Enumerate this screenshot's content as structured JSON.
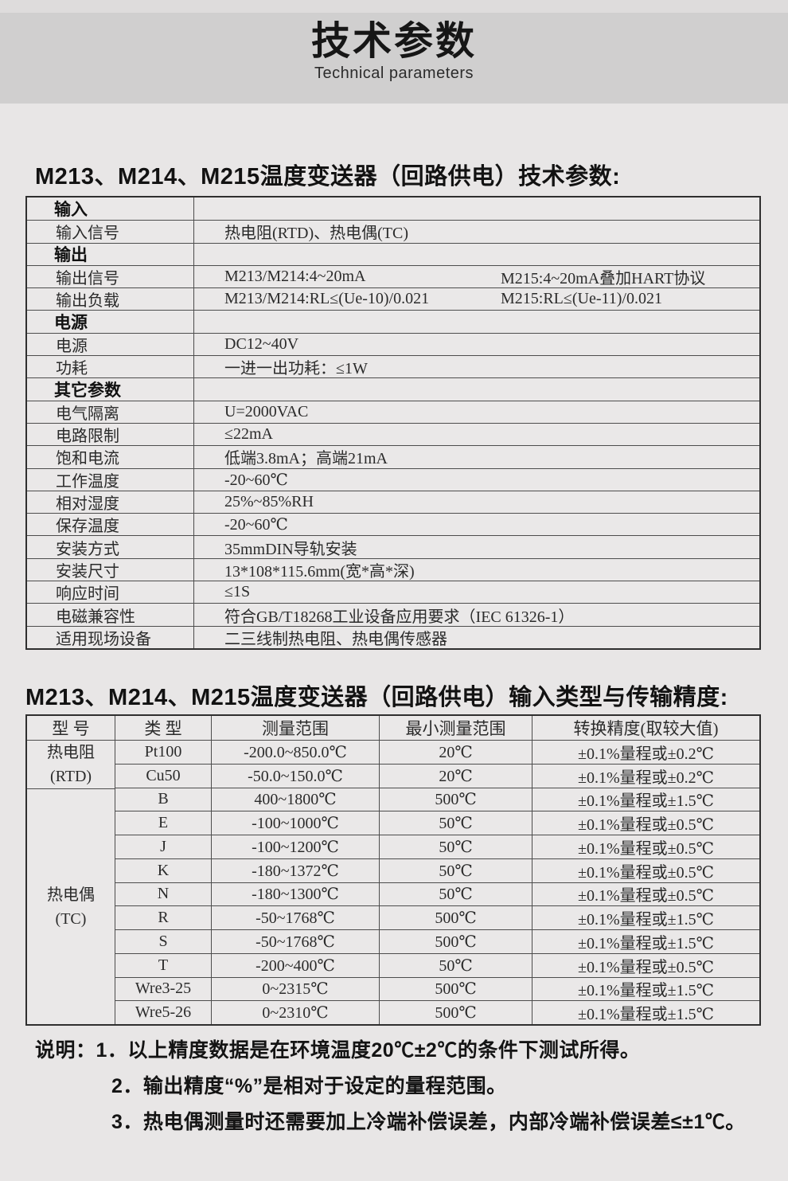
{
  "banner": {
    "title": "技术参数",
    "subtitle": "Technical parameters"
  },
  "section1": {
    "heading": "M213、M214、M215温度变送器（回路供电）技术参数:",
    "rows": [
      {
        "label": "输入"
      },
      {
        "label": "输入信号",
        "value": "热电阻(RTD)、热电偶(TC)"
      },
      {
        "label": "输出"
      },
      {
        "label": "输出信号",
        "value": "M213/M214:4~20mA",
        "value2": "M215:4~20mA叠加HART协议"
      },
      {
        "label": "输出负载",
        "value": "M213/M214:RL≤(Ue-10)/0.021",
        "value2": "M215:RL≤(Ue-11)/0.021"
      },
      {
        "label": "电源"
      },
      {
        "label": "电源",
        "value": "DC12~40V"
      },
      {
        "label": "功耗",
        "value": "一进一出功耗：≤1W"
      },
      {
        "label": "其它参数"
      },
      {
        "label": "电气隔离",
        "value": "U=2000VAC"
      },
      {
        "label": "电路限制",
        "value": "≤22mA"
      },
      {
        "label": "饱和电流",
        "value": "低端3.8mA；高端21mA"
      },
      {
        "label": "工作温度",
        "value": "-20~60℃"
      },
      {
        "label": "相对湿度",
        "value": "25%~85%RH"
      },
      {
        "label": "保存温度",
        "value": "-20~60℃"
      },
      {
        "label": "安装方式",
        "value": "35mmDIN导轨安装"
      },
      {
        "label": "安装尺寸",
        "value": "13*108*115.6mm(宽*高*深)"
      },
      {
        "label": "响应时间",
        "value": "≤1S"
      },
      {
        "label": "电磁兼容性",
        "value": "符合GB/T18268工业设备应用要求（IEC 61326-1）"
      },
      {
        "label": "适用现场设备",
        "value": "二三线制热电阻、热电偶传感器"
      }
    ]
  },
  "section2": {
    "heading": "M213、M214、M215温度变送器（回路供电）输入类型与传输精度:",
    "headers": [
      "型 号",
      "类 型",
      "测量范围",
      "最小测量范围",
      "转换精度(取较大值)"
    ],
    "groups": [
      {
        "name": "热电阻",
        "code": "(RTD)",
        "rows": [
          {
            "type": "Pt100",
            "range": "-200.0~850.0℃",
            "min": "20℃",
            "acc": "±0.1%量程或±0.2℃"
          },
          {
            "type": "Cu50",
            "range": "-50.0~150.0℃",
            "min": "20℃",
            "acc": "±0.1%量程或±0.2℃"
          }
        ]
      },
      {
        "name": "热电偶",
        "code": "(TC)",
        "rows": [
          {
            "type": "B",
            "range": "400~1800℃",
            "min": "500℃",
            "acc": "±0.1%量程或±1.5℃"
          },
          {
            "type": "E",
            "range": "-100~1000℃",
            "min": "50℃",
            "acc": "±0.1%量程或±0.5℃"
          },
          {
            "type": "J",
            "range": "-100~1200℃",
            "min": "50℃",
            "acc": "±0.1%量程或±0.5℃"
          },
          {
            "type": "K",
            "range": "-180~1372℃",
            "min": "50℃",
            "acc": "±0.1%量程或±0.5℃"
          },
          {
            "type": "N",
            "range": "-180~1300℃",
            "min": "50℃",
            "acc": "±0.1%量程或±0.5℃"
          },
          {
            "type": "R",
            "range": "-50~1768℃",
            "min": "500℃",
            "acc": "±0.1%量程或±1.5℃"
          },
          {
            "type": "S",
            "range": "-50~1768℃",
            "min": "500℃",
            "acc": "±0.1%量程或±1.5℃"
          },
          {
            "type": "T",
            "range": "-200~400℃",
            "min": "50℃",
            "acc": "±0.1%量程或±0.5℃"
          },
          {
            "type": "Wre3-25",
            "range": "0~2315℃",
            "min": "500℃",
            "acc": "±0.1%量程或±1.5℃"
          },
          {
            "type": "Wre5-26",
            "range": "0~2310℃",
            "min": "500℃",
            "acc": "±0.1%量程或±1.5℃"
          }
        ]
      }
    ]
  },
  "notes": {
    "line1": "说明：1．以上精度数据是在环境温度20℃±2℃的条件下测试所得。",
    "line2": "2．输出精度“%”是相对于设定的量程范围。",
    "line3": "3．热电偶测量时还需要加上冷端补偿误差，内部冷端补偿误差≤±1℃。"
  },
  "colors": {
    "banner_bg": "#d0cfcf",
    "top_strip_bg": "#dedcdc",
    "page_bg": "#e8e6e6",
    "table_bg": "#eae8e8",
    "border": "#4d4d4d",
    "text": "#262626"
  }
}
